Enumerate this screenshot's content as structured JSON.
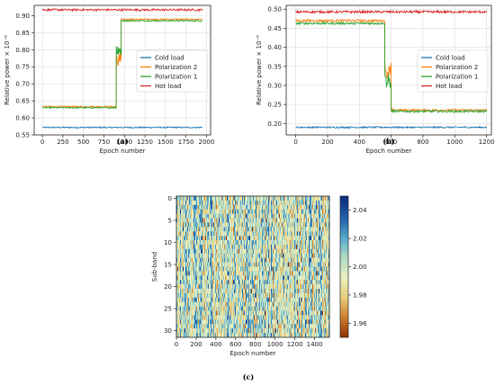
{
  "chart_data": [
    {
      "id": "a",
      "type": "line",
      "caption": "(a)",
      "xlabel": "Epoch number",
      "ylabel": "Relative power × 10⁻⁶",
      "xlim": [
        -100,
        2050
      ],
      "ylim": [
        0.55,
        0.93
      ],
      "xticks": [
        0,
        250,
        500,
        750,
        1000,
        1250,
        1500,
        1750,
        2000
      ],
      "yticks": [
        0.55,
        0.6,
        0.65,
        0.7,
        0.75,
        0.8,
        0.85,
        0.9
      ],
      "ytick_labels": [
        "0.55",
        "0.60",
        "0.65",
        "0.70",
        "0.75",
        "0.80",
        "0.85",
        "0.90"
      ],
      "grid": true,
      "legend_position": "right",
      "series": [
        {
          "name": "Cold load",
          "color": "#1f77b4",
          "segments": [
            {
              "x0": 0,
              "x1": 1950,
              "y": 0.572
            }
          ],
          "noise": 0.002
        },
        {
          "name": "Polarization 2",
          "color": "#ff7f0e",
          "segments": [
            {
              "x0": 0,
              "x1": 900,
              "y": 0.633
            },
            {
              "x0": 900,
              "x1": 960,
              "y": 0.77
            },
            {
              "x0": 960,
              "x1": 1950,
              "y": 0.889
            }
          ],
          "noise": 0.002
        },
        {
          "name": "Polarization 1",
          "color": "#2ca02c",
          "segments": [
            {
              "x0": 0,
              "x1": 900,
              "y": 0.63
            },
            {
              "x0": 900,
              "x1": 960,
              "y": 0.8
            },
            {
              "x0": 960,
              "x1": 1950,
              "y": 0.885
            }
          ],
          "noise": 0.002
        },
        {
          "name": "Hot load",
          "color": "#d62728",
          "segments": [
            {
              "x0": 0,
              "x1": 1950,
              "y": 0.917
            }
          ],
          "noise": 0.003
        }
      ]
    },
    {
      "id": "b",
      "type": "line",
      "caption": "(b)",
      "xlabel": "Epoch number",
      "ylabel": "Relative power × 10⁻⁶",
      "xlim": [
        -60,
        1230
      ],
      "ylim": [
        0.17,
        0.51
      ],
      "xticks": [
        0,
        200,
        400,
        600,
        800,
        1000,
        1200
      ],
      "yticks": [
        0.2,
        0.25,
        0.3,
        0.35,
        0.4,
        0.45,
        0.5
      ],
      "ytick_labels": [
        "0.20",
        "0.25",
        "0.30",
        "0.35",
        "0.40",
        "0.45",
        "0.50"
      ],
      "grid": true,
      "legend_position": "right",
      "series": [
        {
          "name": "Cold load",
          "color": "#1f77b4",
          "segments": [
            {
              "x0": 0,
              "x1": 1200,
              "y": 0.19
            }
          ],
          "noise": 0.002
        },
        {
          "name": "Polarization 2",
          "color": "#ff7f0e",
          "segments": [
            {
              "x0": 0,
              "x1": 560,
              "y": 0.47
            },
            {
              "x0": 560,
              "x1": 600,
              "y": 0.34
            },
            {
              "x0": 600,
              "x1": 1200,
              "y": 0.235
            }
          ],
          "noise": 0.003
        },
        {
          "name": "Polarization 1",
          "color": "#2ca02c",
          "segments": [
            {
              "x0": 0,
              "x1": 560,
              "y": 0.463
            },
            {
              "x0": 560,
              "x1": 600,
              "y": 0.31
            },
            {
              "x0": 600,
              "x1": 1200,
              "y": 0.232
            }
          ],
          "noise": 0.003
        },
        {
          "name": "Hot load",
          "color": "#d62728",
          "segments": [
            {
              "x0": 0,
              "x1": 1200,
              "y": 0.493
            }
          ],
          "noise": 0.003
        }
      ]
    },
    {
      "id": "c",
      "type": "heatmap",
      "caption": "(c)",
      "xlabel": "Epoch number",
      "ylabel": "Sub-band",
      "xlim": [
        0,
        1550
      ],
      "ylim": [
        31.5,
        -0.5
      ],
      "xticks": [
        0,
        200,
        400,
        600,
        800,
        1000,
        1200,
        1400
      ],
      "yticks": [
        0,
        5,
        10,
        15,
        20,
        25,
        30
      ],
      "rows": 32,
      "value_range": [
        1.95,
        2.05
      ],
      "colorbar_ticks": [
        1.96,
        1.98,
        2.0,
        2.02,
        2.04
      ],
      "colorbar_tick_labels": [
        "1.96",
        "1.98",
        "2.00",
        "2.02",
        "2.04"
      ],
      "colormap": [
        "#8c2d04",
        "#cc7a2a",
        "#e8cc7a",
        "#e9f0c0",
        "#b3dcc8",
        "#53a7cb",
        "#1f5fa8",
        "#0c2d83"
      ]
    }
  ]
}
